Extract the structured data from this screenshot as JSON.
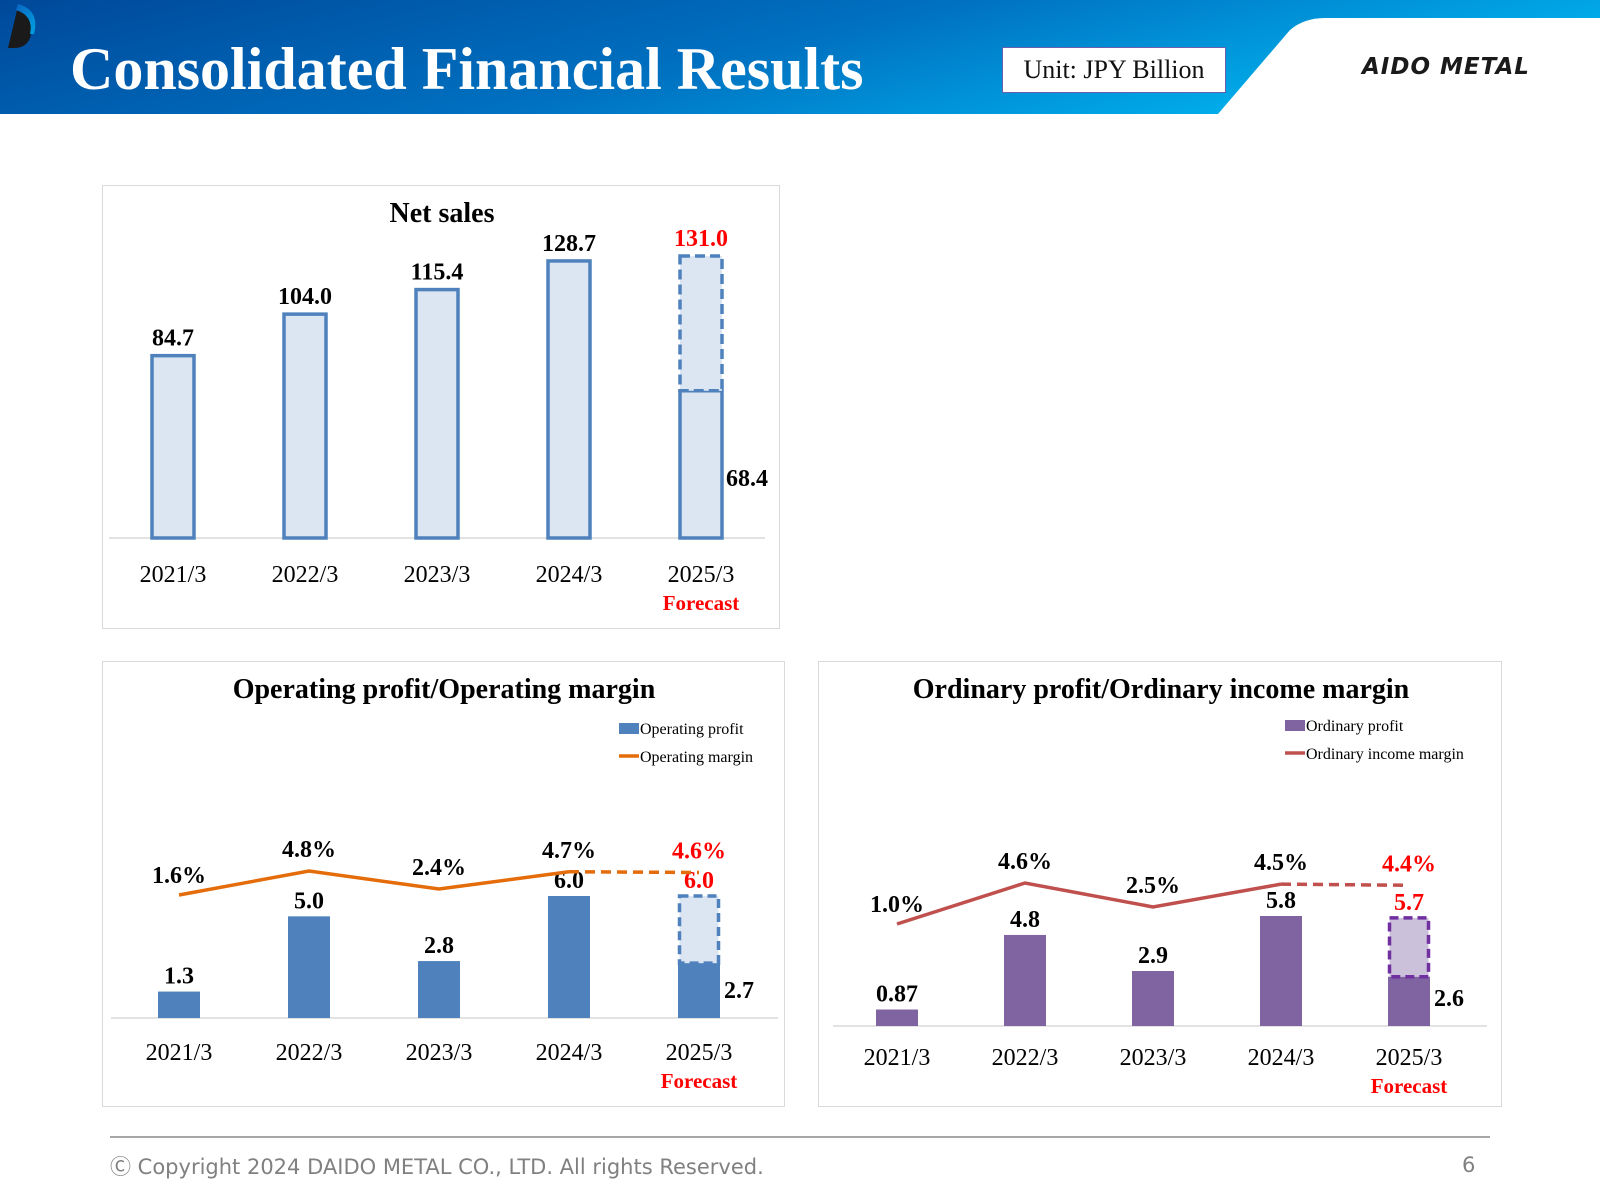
{
  "header": {
    "title": "Consolidated Financial Results",
    "unit": "Unit: JPY Billion",
    "logo_text": "AIDO METAL",
    "logo_icon": "daido-d-logo-icon"
  },
  "colors": {
    "header_blue_dark": "#004a9a",
    "header_blue_light": "#00a6e6",
    "sales_bar_fill": "#dce6f2",
    "sales_bar_stroke": "#4f81bd",
    "op_bar": "#4f81bd",
    "op_line": "#e46c0a",
    "ord_bar": "#8064a2",
    "ord_forecast_fill": "#ccc1da",
    "ord_forecast_stroke": "#7030a0",
    "ord_line": "#c0504d",
    "forecast_red": "#ff0000"
  },
  "chart_data": [
    {
      "id": "net-sales",
      "type": "bar",
      "title": "Net sales",
      "categories": [
        "2021/3",
        "2022/3",
        "2023/3",
        "2024/3",
        "2025/3"
      ],
      "forecast_note": "Forecast",
      "values": [
        84.7,
        104.0,
        115.4,
        128.7,
        68.4
      ],
      "value_labels": [
        "84.7",
        "104.0",
        "115.4",
        "128.7",
        "68.4"
      ],
      "forecast_value": 131.0,
      "forecast_label": "131.0",
      "ylim": [
        0,
        135
      ],
      "grid": false,
      "legend": "none"
    },
    {
      "id": "operating-profit",
      "type": "bar+line",
      "title": "Operating profit/Operating margin",
      "categories": [
        "2021/3",
        "2022/3",
        "2023/3",
        "2024/3",
        "2025/3"
      ],
      "forecast_note": "Forecast",
      "series": [
        {
          "name": "Operating profit",
          "kind": "bar",
          "values": [
            1.3,
            5.0,
            2.8,
            6.0,
            2.7
          ],
          "labels": [
            "1.3",
            "5.0",
            "2.8",
            "6.0",
            "2.7"
          ],
          "forecast_value": 6.0,
          "forecast_label": "6.0"
        },
        {
          "name": "Operating margin",
          "kind": "line",
          "unit": "%",
          "values": [
            1.6,
            4.8,
            2.4,
            4.7,
            4.6
          ],
          "labels": [
            "1.6%",
            "4.8%",
            "2.4%",
            "4.7%",
            "4.6%"
          ],
          "forecast_index": 4
        }
      ],
      "legend": "top-right"
    },
    {
      "id": "ordinary-profit",
      "type": "bar+line",
      "title": "Ordinary profit/Ordinary income margin",
      "categories": [
        "2021/3",
        "2022/3",
        "2023/3",
        "2024/3",
        "2025/3"
      ],
      "forecast_note": "Forecast",
      "series": [
        {
          "name": "Ordinary profit",
          "kind": "bar",
          "values": [
            0.87,
            4.8,
            2.9,
            5.8,
            2.6
          ],
          "labels": [
            "0.87",
            "4.8",
            "2.9",
            "5.8",
            "2.6"
          ],
          "forecast_value": 5.7,
          "forecast_label": "5.7"
        },
        {
          "name": "Ordinary income margin",
          "kind": "line",
          "unit": "%",
          "values": [
            1.0,
            4.6,
            2.5,
            4.5,
            4.4
          ],
          "labels": [
            "1.0%",
            "4.6%",
            "2.5%",
            "4.5%",
            "4.4%"
          ],
          "forecast_index": 4
        }
      ],
      "legend": "top-right"
    }
  ],
  "footer": {
    "copyright": "Ⓒ Copyright 2024 DAIDO METAL CO., LTD. All rights Reserved.",
    "page_number": "6"
  }
}
